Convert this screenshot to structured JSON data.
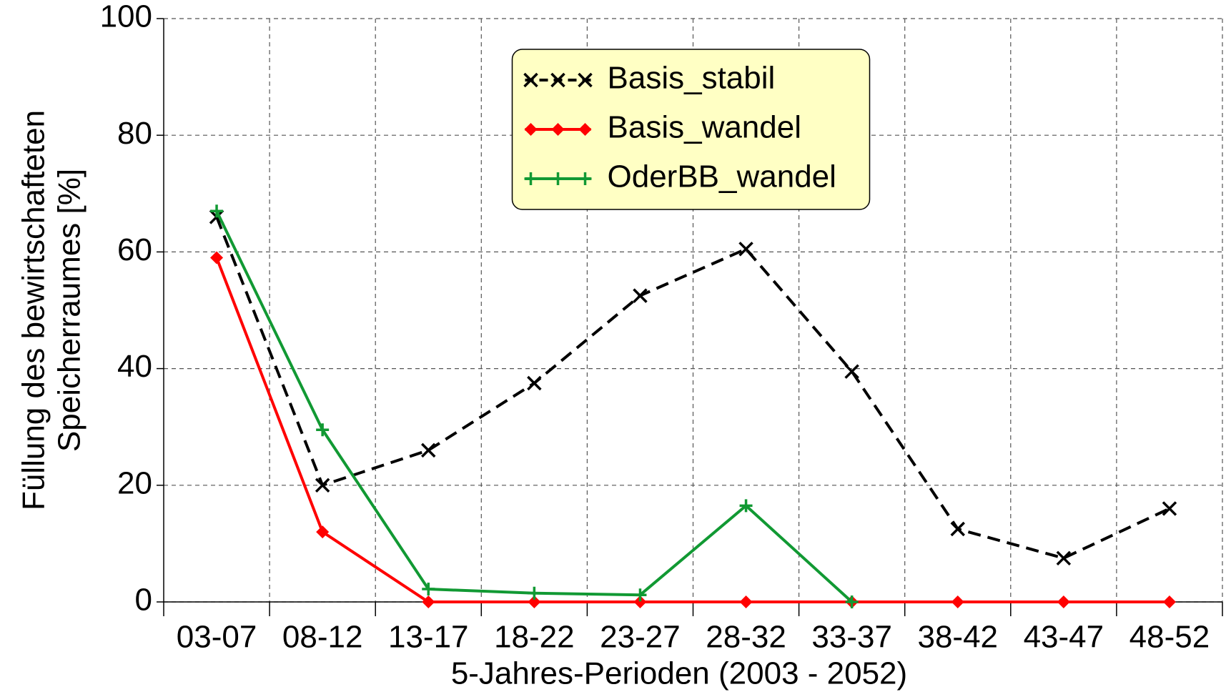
{
  "chart_data": {
    "type": "line",
    "xlabel": "5-Jahres-Perioden (2003 - 2052)",
    "ylabel": [
      "Füllung des bewirtschafteten",
      "Speicherraumes [%]"
    ],
    "categories": [
      "03-07",
      "08-12",
      "13-17",
      "18-22",
      "23-27",
      "28-32",
      "33-37",
      "38-42",
      "43-47",
      "48-52"
    ],
    "series": [
      {
        "name": "Basis_stabil",
        "color": "#000000",
        "linestyle": "dashed",
        "marker": "x",
        "values": [
          66,
          20,
          26,
          37.5,
          52.5,
          60.5,
          39.5,
          12.5,
          7.5,
          16
        ]
      },
      {
        "name": "Basis_wandel",
        "color": "#ff0000",
        "linestyle": "solid",
        "marker": "diamond",
        "values": [
          59,
          12,
          0,
          0,
          0,
          0,
          0,
          0,
          0,
          0
        ]
      },
      {
        "name": "OderBB_wandel",
        "color": "#119933",
        "linestyle": "solid",
        "marker": "plus",
        "values": [
          67,
          29.5,
          2.2,
          1.5,
          1.2,
          16.5,
          0,
          null,
          null,
          null
        ]
      }
    ],
    "ylim": [
      0,
      100
    ],
    "yticks": [
      0,
      20,
      40,
      60,
      80,
      100
    ],
    "grid": true,
    "legend": "upper center"
  }
}
